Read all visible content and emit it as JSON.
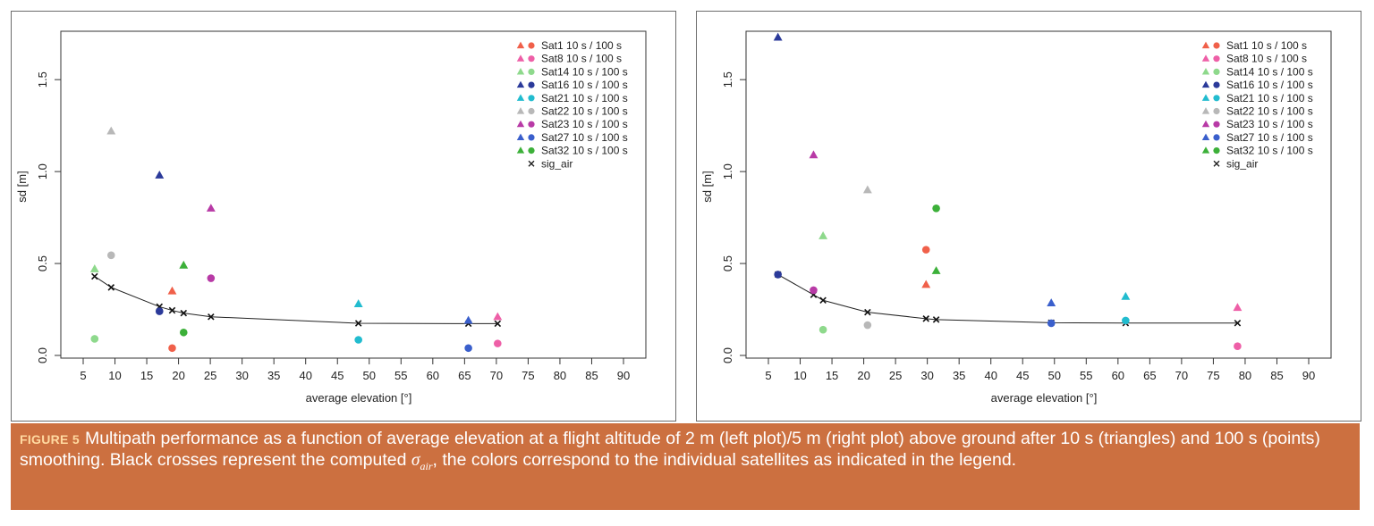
{
  "figure": {
    "label": "FIGURE 5",
    "caption_before_symbol": "Multipath performance as a function of average elevation at a flight altitude of 2 m (left plot)/5 m (right plot) above ground after 10 s (triangles) and 100 s (points) smoothing. Black crosses represent the computed ",
    "symbol": "σ",
    "symbol_sub": "air",
    "caption_after_symbol": ", the colors correspond to the individual satellites as indicated in the legend.",
    "caption_color": "#cc7040",
    "label_color": "#ffd9a0"
  },
  "chart_data": [
    {
      "type": "scatter",
      "panel": "left",
      "xlabel": "average elevation [°]",
      "ylabel": "sd [m]",
      "xlim": [
        5,
        90
      ],
      "ylim": [
        0,
        1.7
      ],
      "xticks": [
        "5",
        "10",
        "15",
        "20",
        "25",
        "30",
        "35",
        "40",
        "45",
        "50",
        "55",
        "60",
        "65",
        "70",
        "75",
        "80",
        "85",
        "90"
      ],
      "yticks": [
        "0.0",
        "0.5",
        "1.0",
        "1.5"
      ],
      "legend_position": "top-right",
      "legend": [
        {
          "label": "Sat1 10 s / 100 s",
          "color": "#f0604a",
          "marker": "both"
        },
        {
          "label": "Sat8 10 s / 100 s",
          "color": "#ee5fa7",
          "marker": "both"
        },
        {
          "label": "Sat14 10 s / 100 s",
          "color": "#8ed98c",
          "marker": "both"
        },
        {
          "label": "Sat16 10 s / 100 s",
          "color": "#2b3a9a",
          "marker": "both"
        },
        {
          "label": "Sat21 10 s / 100 s",
          "color": "#22bccf",
          "marker": "both"
        },
        {
          "label": "Sat22 10 s / 100 s",
          "color": "#b8b8b8",
          "marker": "both"
        },
        {
          "label": "Sat23 10 s / 100 s",
          "color": "#b83aa6",
          "marker": "both"
        },
        {
          "label": "Sat27 10 s / 100 s",
          "color": "#3a5fcc",
          "marker": "both"
        },
        {
          "label": "Sat32 10 s / 100 s",
          "color": "#3cb039",
          "marker": "both"
        },
        {
          "label": "sig_air",
          "color": "#222222",
          "marker": "cross"
        }
      ],
      "series": [
        {
          "name": "Sat1",
          "color": "#f0604a",
          "triangle": {
            "x": 19,
            "y": 0.35
          },
          "point": {
            "x": 19,
            "y": 0.04
          }
        },
        {
          "name": "Sat8",
          "color": "#ee5fa7",
          "triangle": {
            "x": 70.2,
            "y": 0.21
          },
          "point": {
            "x": 70.2,
            "y": 0.065
          }
        },
        {
          "name": "Sat14",
          "color": "#8ed98c",
          "triangle": {
            "x": 6.8,
            "y": 0.47
          },
          "point": {
            "x": 6.8,
            "y": 0.09
          }
        },
        {
          "name": "Sat16",
          "color": "#2b3a9a",
          "triangle": {
            "x": 17,
            "y": 0.98
          },
          "point": {
            "x": 17,
            "y": 0.24
          }
        },
        {
          "name": "Sat21",
          "color": "#22bccf",
          "triangle": {
            "x": 48.3,
            "y": 0.28
          },
          "point": {
            "x": 48.3,
            "y": 0.085
          }
        },
        {
          "name": "Sat22",
          "color": "#b8b8b8",
          "triangle": {
            "x": 9.4,
            "y": 1.22
          },
          "point": {
            "x": 9.4,
            "y": 0.545
          }
        },
        {
          "name": "Sat23",
          "color": "#b83aa6",
          "triangle": {
            "x": 25.1,
            "y": 0.8
          },
          "point": {
            "x": 25.1,
            "y": 0.42
          }
        },
        {
          "name": "Sat27",
          "color": "#3a5fcc",
          "triangle": {
            "x": 65.6,
            "y": 0.19
          },
          "point": {
            "x": 65.6,
            "y": 0.04
          }
        },
        {
          "name": "Sat32",
          "color": "#3cb039",
          "triangle": {
            "x": 20.8,
            "y": 0.49
          },
          "point": {
            "x": 20.8,
            "y": 0.125
          }
        }
      ],
      "sig_air": {
        "x": [
          6.8,
          9.4,
          17,
          19,
          20.8,
          25.1,
          48.3,
          65.6,
          70.2
        ],
        "y": [
          0.43,
          0.37,
          0.265,
          0.245,
          0.23,
          0.21,
          0.175,
          0.173,
          0.173
        ]
      }
    },
    {
      "type": "scatter",
      "panel": "right",
      "xlabel": "average elevation [°]",
      "ylabel": "sd [m]",
      "xlim": [
        5,
        90
      ],
      "ylim": [
        0,
        1.7
      ],
      "xticks": [
        "5",
        "10",
        "15",
        "20",
        "25",
        "30",
        "35",
        "40",
        "45",
        "50",
        "55",
        "60",
        "65",
        "70",
        "75",
        "80",
        "85",
        "90"
      ],
      "yticks": [
        "0.0",
        "0.5",
        "1.0",
        "1.5"
      ],
      "legend_position": "top-right",
      "legend": [
        {
          "label": "Sat1 10 s / 100 s",
          "color": "#f0604a",
          "marker": "both"
        },
        {
          "label": "Sat8 10 s / 100 s",
          "color": "#ee5fa7",
          "marker": "both"
        },
        {
          "label": "Sat14 10 s / 100 s",
          "color": "#8ed98c",
          "marker": "both"
        },
        {
          "label": "Sat16 10 s / 100 s",
          "color": "#2b3a9a",
          "marker": "both"
        },
        {
          "label": "Sat21 10 s / 100 s",
          "color": "#22bccf",
          "marker": "both"
        },
        {
          "label": "Sat22 10 s / 100 s",
          "color": "#b8b8b8",
          "marker": "both"
        },
        {
          "label": "Sat23 10 s / 100 s",
          "color": "#b83aa6",
          "marker": "both"
        },
        {
          "label": "Sat27 10 s / 100 s",
          "color": "#3a5fcc",
          "marker": "both"
        },
        {
          "label": "Sat32 10 s / 100 s",
          "color": "#3cb039",
          "marker": "both"
        },
        {
          "label": "sig_air",
          "color": "#222222",
          "marker": "cross"
        }
      ],
      "series": [
        {
          "name": "Sat1",
          "color": "#f0604a",
          "triangle": {
            "x": 29.8,
            "y": 0.385
          },
          "point": {
            "x": 29.8,
            "y": 0.575
          }
        },
        {
          "name": "Sat8",
          "color": "#ee5fa7",
          "triangle": {
            "x": 78.8,
            "y": 0.26
          },
          "point": {
            "x": 78.8,
            "y": 0.05
          }
        },
        {
          "name": "Sat14",
          "color": "#8ed98c",
          "triangle": {
            "x": 13.6,
            "y": 0.65
          },
          "point": {
            "x": 13.6,
            "y": 0.14
          }
        },
        {
          "name": "Sat16",
          "color": "#2b3a9a",
          "triangle": {
            "x": 6.5,
            "y": 1.73
          },
          "point": {
            "x": 6.5,
            "y": 0.44
          }
        },
        {
          "name": "Sat21",
          "color": "#22bccf",
          "triangle": {
            "x": 61.2,
            "y": 0.32
          },
          "point": {
            "x": 61.2,
            "y": 0.19
          }
        },
        {
          "name": "Sat22",
          "color": "#b8b8b8",
          "triangle": {
            "x": 20.6,
            "y": 0.9
          },
          "point": {
            "x": 20.6,
            "y": 0.165
          }
        },
        {
          "name": "Sat23",
          "color": "#b83aa6",
          "triangle": {
            "x": 12.1,
            "y": 1.09
          },
          "point": {
            "x": 12.1,
            "y": 0.355
          }
        },
        {
          "name": "Sat27",
          "color": "#3a5fcc",
          "triangle": {
            "x": 49.5,
            "y": 0.285
          },
          "point": {
            "x": 49.5,
            "y": 0.175
          }
        },
        {
          "name": "Sat32",
          "color": "#3cb039",
          "triangle": {
            "x": 31.4,
            "y": 0.46
          },
          "point": {
            "x": 31.4,
            "y": 0.8
          }
        }
      ],
      "sig_air": {
        "x": [
          6.5,
          12.1,
          13.6,
          20.6,
          29.8,
          31.4,
          49.5,
          61.2,
          78.8
        ],
        "y": [
          0.44,
          0.33,
          0.3,
          0.235,
          0.2,
          0.195,
          0.178,
          0.176,
          0.176
        ]
      }
    }
  ]
}
